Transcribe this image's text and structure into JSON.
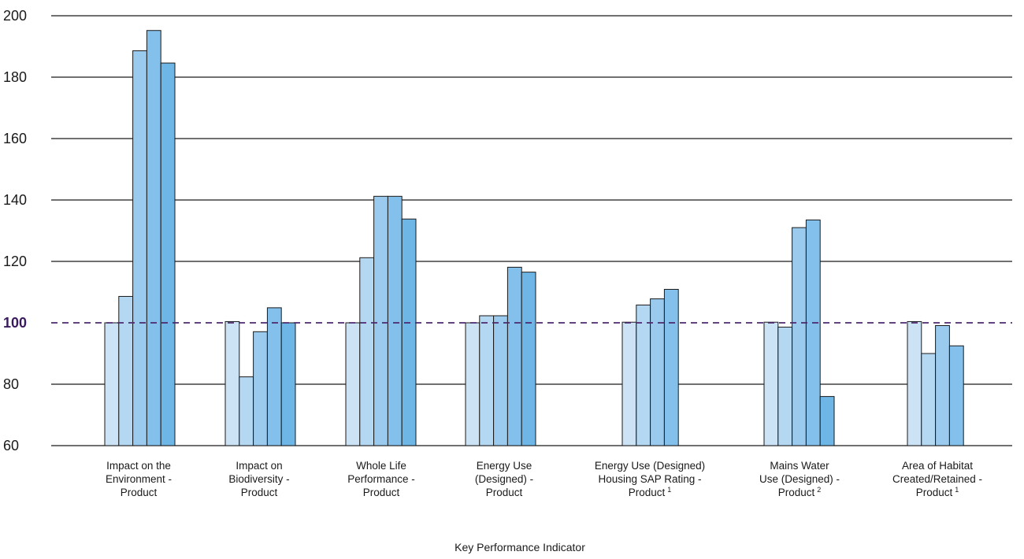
{
  "chart_data": {
    "type": "bar",
    "title": "",
    "xlabel": "Key Performance Indicator",
    "ylabel": "",
    "ylim": [
      60,
      200
    ],
    "yticks": [
      60,
      80,
      100,
      120,
      140,
      160,
      180,
      200
    ],
    "reference_line": {
      "value": 100,
      "style": "dashed",
      "color": "#4b2a6e"
    },
    "grid": true,
    "categories": [
      {
        "lines": [
          "Impact on the",
          "Environment -",
          "Product"
        ],
        "footnote": "",
        "values": [
          100,
          108.6,
          188.6,
          195.2,
          184.6
        ]
      },
      {
        "lines": [
          "Impact on",
          "Biodiversity -",
          "Product"
        ],
        "footnote": "",
        "values": [
          100.4,
          82.4,
          97.1,
          104.9,
          100
        ]
      },
      {
        "lines": [
          "Whole Life",
          "Performance -",
          "Product"
        ],
        "footnote": "",
        "values": [
          100,
          121.2,
          141.2,
          141.2,
          133.8
        ]
      },
      {
        "lines": [
          "Energy Use",
          "(Designed) -",
          "Product"
        ],
        "footnote": "",
        "values": [
          100,
          102.3,
          102.3,
          118.1,
          116.5
        ]
      },
      {
        "lines": [
          "Energy Use (Designed)",
          "Housing SAP Rating -",
          "Product"
        ],
        "footnote": "1",
        "values": [
          100.2,
          105.8,
          107.8,
          110.9
        ]
      },
      {
        "lines": [
          "Mains Water",
          "Use (Designed) -",
          "Product"
        ],
        "footnote": "2",
        "values": [
          100.2,
          98.6,
          131,
          133.5,
          76
        ]
      },
      {
        "lines": [
          "Area of Habitat",
          "Created/Retained -",
          "Product"
        ],
        "footnote": "1",
        "values": [
          100.4,
          90,
          99.1,
          92.5
        ]
      }
    ],
    "bar_colors": [
      "#cce3f6",
      "#b4d7f2",
      "#9acbee",
      "#83c0eb",
      "#6eb6e6"
    ],
    "bar_stroke": "#1a1a1a"
  }
}
